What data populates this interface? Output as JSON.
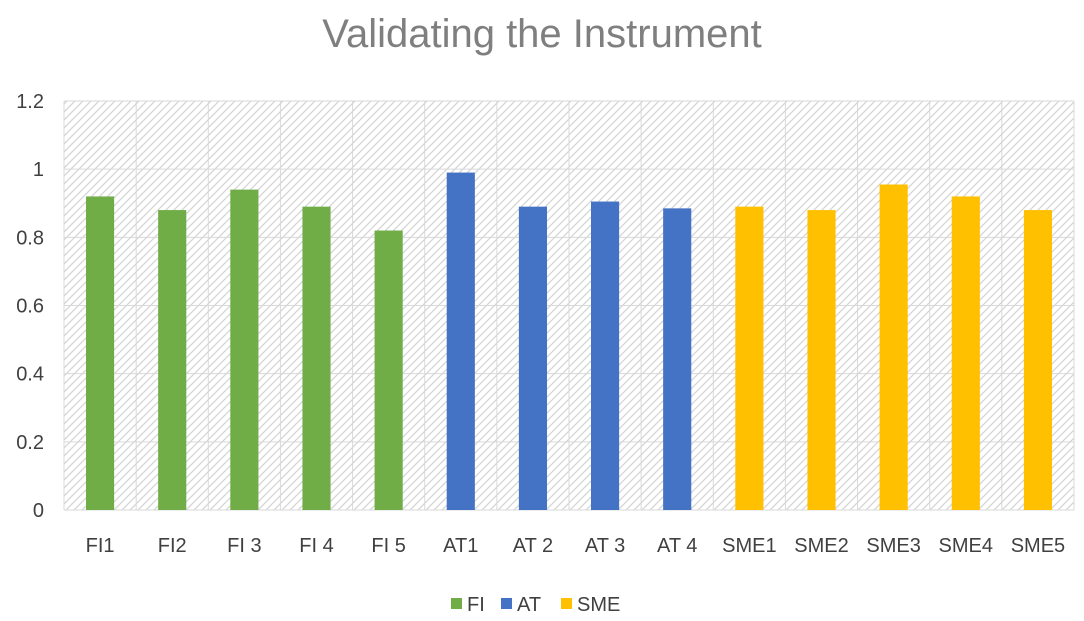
{
  "chart_data": {
    "type": "bar",
    "title": "Validating the Instrument",
    "xlabel": "",
    "ylabel": "",
    "ylim": [
      0,
      1.2
    ],
    "yticks": [
      "0",
      "0.2",
      "0.4",
      "0.6",
      "0.8",
      "1",
      "1.2"
    ],
    "grid": true,
    "legend_position": "bottom",
    "categories": [
      "FI1",
      "FI2",
      "FI 3",
      "FI 4",
      "FI 5",
      "AT1",
      "AT 2",
      "AT 3",
      "AT 4",
      "SME1",
      "SME2",
      "SME3",
      "SME4",
      "SME5"
    ],
    "series": [
      {
        "name": "FI",
        "color": "#70ad47",
        "values": [
          0.92,
          0.88,
          0.94,
          0.89,
          0.82,
          null,
          null,
          null,
          null,
          null,
          null,
          null,
          null,
          null
        ]
      },
      {
        "name": "AT",
        "color": "#4472c4",
        "values": [
          null,
          null,
          null,
          null,
          null,
          0.99,
          0.89,
          0.905,
          0.885,
          null,
          null,
          null,
          null,
          null
        ]
      },
      {
        "name": "SME",
        "color": "#ffc000",
        "values": [
          null,
          null,
          null,
          null,
          null,
          null,
          null,
          null,
          null,
          0.89,
          0.88,
          0.955,
          0.92,
          0.88
        ]
      }
    ]
  }
}
